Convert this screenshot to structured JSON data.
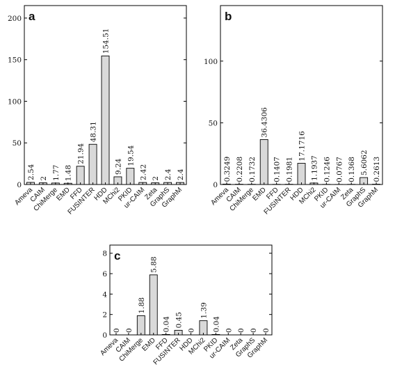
{
  "chart_data": [
    {
      "type": "bar",
      "panel_label": "a",
      "categories": [
        "Ameva",
        "CAIM",
        "ChiMerge",
        "EMD",
        "FFD",
        "FUSINTER",
        "HDD",
        "MChi2",
        "PKID",
        "ur-CAIM",
        "Zeta",
        "GraphS",
        "GraphM"
      ],
      "values": [
        2.54,
        2,
        1.77,
        1.48,
        21.94,
        48.31,
        154.51,
        9.24,
        19.54,
        2.42,
        2,
        2.4,
        2.4
      ],
      "value_labels": [
        "2.54",
        "2",
        "1.77",
        "1.48",
        "21.94",
        "48.31",
        "154.51",
        "9.24",
        "19.54",
        "2.42",
        "2",
        "2.4",
        "2.4"
      ],
      "yticks": [
        "0",
        "50",
        "100",
        "150",
        "200"
      ],
      "ylim": [
        0,
        215
      ],
      "grid": false,
      "bar_color": "#d9d9d9"
    },
    {
      "type": "bar",
      "panel_label": "b",
      "categories": [
        "Ameva",
        "CAIM",
        "ChiMerge",
        "EMD",
        "FFD",
        "FUSINTER",
        "HDD",
        "MChi2",
        "PKID",
        "ur-CAIM",
        "Zeta",
        "GraphS",
        "GraphM"
      ],
      "values": [
        0.3249,
        0.2208,
        0.1732,
        36.4306,
        0.1407,
        0.1981,
        17.1716,
        1.1937,
        0.1246,
        0.0767,
        0.1368,
        5.6062,
        0.2613
      ],
      "value_labels": [
        "0.3249",
        "0.2208",
        "0.1732",
        "36.4306",
        "0.1407",
        "0.1981",
        "17.1716",
        "1.1937",
        "0.1246",
        "0.0767",
        "0.1368",
        "5.6062",
        "0.2613"
      ],
      "yticks": [
        "0",
        "50",
        "100"
      ],
      "ylim": [
        0,
        145
      ],
      "grid": false,
      "bar_color": "#d9d9d9"
    },
    {
      "type": "bar",
      "panel_label": "c",
      "categories": [
        "Ameva",
        "CAIM",
        "ChiMerge",
        "EMD",
        "FFD",
        "FUSINTER",
        "HDD",
        "MChi2",
        "PKID",
        "ur-CAIM",
        "Zeta",
        "GraphS",
        "GraphM"
      ],
      "values": [
        0,
        0,
        1.88,
        5.88,
        0.04,
        0.45,
        0,
        1.39,
        0.04,
        0,
        0,
        0,
        0
      ],
      "value_labels": [
        "0",
        "0",
        "1.88",
        "5.88",
        "0.04",
        "0.45",
        "0",
        "1.39",
        "0.04",
        "0",
        "0",
        "0",
        "0"
      ],
      "yticks": [
        "0",
        "2",
        "4",
        "6",
        "8"
      ],
      "ylim": [
        0,
        8.8
      ],
      "grid": false,
      "bar_color": "#d9d9d9"
    }
  ]
}
